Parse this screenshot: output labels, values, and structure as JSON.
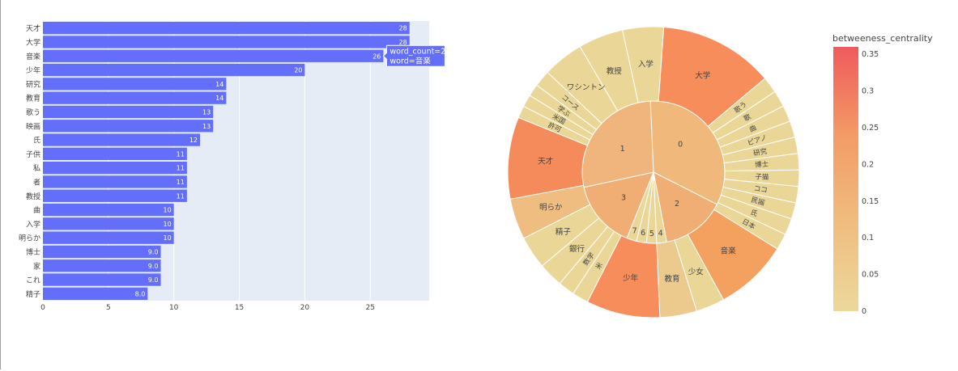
{
  "chart_data": [
    {
      "type": "bar",
      "orientation": "horizontal",
      "categories": [
        "天才",
        "大学",
        "音楽",
        "少年",
        "研究",
        "教育",
        "歌う",
        "映画",
        "氏",
        "子供",
        "私",
        "者",
        "教授",
        "曲",
        "入学",
        "明らか",
        "博士",
        "家",
        "これ",
        "精子"
      ],
      "values": [
        28,
        28,
        26,
        20,
        14,
        14,
        13,
        13,
        12,
        11,
        11,
        11,
        11,
        10,
        10,
        10,
        9,
        9,
        9,
        8
      ],
      "value_labels": [
        "28",
        "28",
        "26",
        "20",
        "14",
        "14",
        "13",
        "13",
        "12",
        "11",
        "11",
        "11",
        "11",
        "10",
        "10",
        "10",
        "9.0",
        "9.0",
        "9.0",
        "8.0"
      ],
      "xlim": [
        0,
        29.5
      ],
      "xticks": [
        "0",
        "5",
        "10",
        "15",
        "20",
        "25"
      ],
      "bar_color": "#636efa",
      "plot_bg": "#e5ecf6",
      "hover_label": {
        "lines": [
          "word_count=26",
          "word=音楽"
        ]
      }
    },
    {
      "type": "sunburst",
      "colorbar": {
        "title": "betweeness_centrality",
        "ticks": [
          "0",
          "0.05",
          "0.1",
          "0.15",
          "0.2",
          "0.25",
          "0.3",
          "0.35"
        ],
        "range": [
          0,
          0.36
        ],
        "colors": [
          "#ecd89c",
          "#efbd7f",
          "#f39b66",
          "#ef5a5c"
        ]
      },
      "inner": [
        {
          "label": "0",
          "value": 90,
          "color": "#f0b87a"
        },
        {
          "label": "2",
          "value": 32,
          "color": "#f1ae74"
        },
        {
          "label": "4",
          "value": 5,
          "color": "#ead798"
        },
        {
          "label": "5",
          "value": 5,
          "color": "#ead798"
        },
        {
          "label": "6",
          "value": 5,
          "color": "#ead798"
        },
        {
          "label": "7",
          "value": 5,
          "color": "#ead798"
        },
        {
          "label": "3",
          "value": 34,
          "color": "#f1ae74"
        },
        {
          "label": "1",
          "value": 61,
          "color": "#efb57c"
        }
      ],
      "outer": [
        {
          "label": "教授",
          "value": 11,
          "color": "#ead798"
        },
        {
          "label": "入学",
          "value": 10,
          "color": "#ead798"
        },
        {
          "label": "大学",
          "value": 28,
          "color": "#f68d5b"
        },
        {
          "label": "歌う",
          "value": 4,
          "color": "#ead798"
        },
        {
          "label": "歌",
          "value": 4,
          "color": "#ead798"
        },
        {
          "label": "曲",
          "value": 4,
          "color": "#ead798"
        },
        {
          "label": "ピアノ",
          "value": 4,
          "color": "#ead798"
        },
        {
          "label": "研究",
          "value": 4,
          "color": "#ead798"
        },
        {
          "label": "博士",
          "value": 4,
          "color": "#ead798"
        },
        {
          "label": "子猫",
          "value": 4,
          "color": "#ead798"
        },
        {
          "label": "ココ",
          "value": 4,
          "color": "#ead798"
        },
        {
          "label": "民謡",
          "value": 4,
          "color": "#ead798"
        },
        {
          "label": "氏",
          "value": 4,
          "color": "#ead798"
        },
        {
          "label": "日本",
          "value": 4,
          "color": "#ead798"
        },
        {
          "label": "音楽",
          "value": 18,
          "color": "#f4a05f"
        },
        {
          "label": "少女",
          "value": 7,
          "color": "#ead798"
        },
        {
          "label": "教育",
          "value": 9,
          "color": "#ecca8e"
        },
        {
          "label": "少年",
          "value": 18,
          "color": "#f68d5b"
        },
        {
          "label": "米",
          "value": 4,
          "color": "#ead798"
        },
        {
          "label": "数学",
          "value": 4,
          "color": "#ead798"
        },
        {
          "label": "銀行",
          "value": 6,
          "color": "#ead798"
        },
        {
          "label": "精子",
          "value": 8,
          "color": "#ead798"
        },
        {
          "label": "明らか",
          "value": 10,
          "color": "#efbd80"
        },
        {
          "label": "天才",
          "value": 20,
          "color": "#f58a5a"
        },
        {
          "label": "許可",
          "value": 3,
          "color": "#ead798"
        },
        {
          "label": "米国",
          "value": 3,
          "color": "#ead798"
        },
        {
          "label": "学ぶ",
          "value": 3,
          "color": "#ead798"
        },
        {
          "label": "コース",
          "value": 4,
          "color": "#ead798"
        },
        {
          "label": "ワシントン",
          "value": 10,
          "color": "#ead798"
        }
      ]
    }
  ]
}
